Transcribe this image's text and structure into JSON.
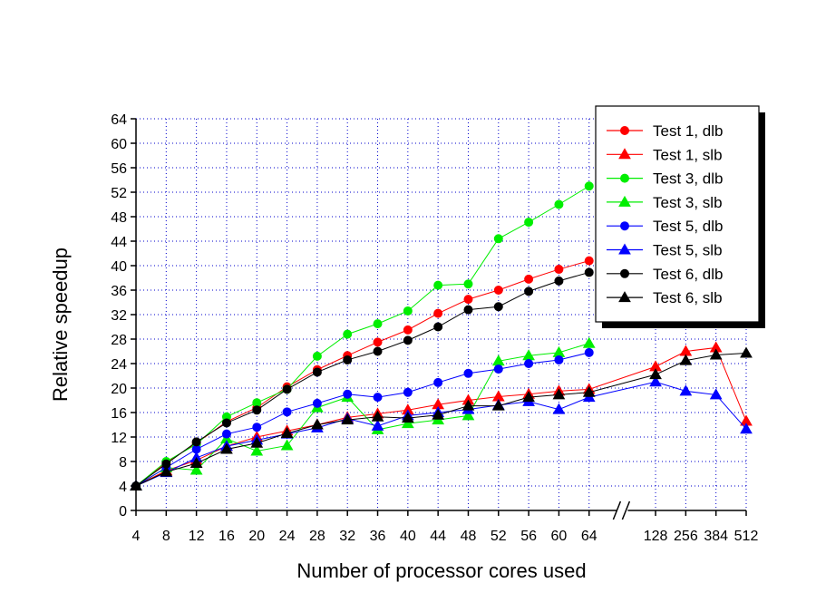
{
  "chart_data": {
    "type": "line",
    "xlabel": "Number of processor cores used",
    "ylabel": "Relative speedup",
    "categories": [
      "4",
      "8",
      "12",
      "16",
      "20",
      "24",
      "28",
      "32",
      "36",
      "40",
      "44",
      "48",
      "52",
      "56",
      "60",
      "64",
      "128",
      "256",
      "384",
      "512"
    ],
    "axis_break_after": "64",
    "ylim": [
      0,
      64
    ],
    "yticks": [
      0,
      4,
      8,
      12,
      16,
      20,
      24,
      28,
      32,
      36,
      40,
      44,
      48,
      52,
      56,
      60,
      64
    ],
    "grid": true,
    "legend_position": "top-right",
    "series": [
      {
        "name": "Test 1, dlb",
        "color": "#ff0000",
        "marker": "circle",
        "values": [
          4,
          7.8,
          11,
          14.5,
          16.8,
          20.2,
          23,
          25.3,
          27.5,
          29.5,
          32.2,
          34.5,
          36,
          37.8,
          39.4,
          40.8,
          null,
          null,
          null,
          null
        ]
      },
      {
        "name": "Test 1, slb",
        "color": "#ff0000",
        "marker": "triangle",
        "values": [
          4,
          6.5,
          8.2,
          10.5,
          12,
          13,
          14,
          15.2,
          15.8,
          16.4,
          17.3,
          18,
          18.6,
          19,
          19.5,
          19.8,
          23.5,
          26,
          26.6,
          14.6
        ]
      },
      {
        "name": "Test 3, dlb",
        "color": "#00ee00",
        "marker": "circle",
        "values": [
          4,
          8,
          10.8,
          15.3,
          17.6,
          19.8,
          25.2,
          28.8,
          30.5,
          32.6,
          36.8,
          37,
          44.4,
          47.1,
          50,
          53,
          null,
          null,
          null,
          null
        ]
      },
      {
        "name": "Test 3, slb",
        "color": "#00ee00",
        "marker": "triangle",
        "values": [
          4,
          7,
          6.6,
          11.7,
          9.7,
          10.6,
          16.8,
          18.5,
          13.2,
          14.2,
          14.8,
          15.5,
          24.4,
          25.3,
          25.8,
          27.3,
          null,
          null,
          null,
          null
        ]
      },
      {
        "name": "Test 5, dlb",
        "color": "#0000ff",
        "marker": "circle",
        "values": [
          4,
          7,
          10,
          12.5,
          13.6,
          16.1,
          17.5,
          19,
          18.5,
          19.3,
          20.9,
          22.4,
          23.1,
          24,
          24.6,
          25.8,
          null,
          null,
          null,
          null
        ]
      },
      {
        "name": "Test 5, slb",
        "color": "#0000ff",
        "marker": "triangle",
        "values": [
          4,
          6.2,
          8.6,
          10.5,
          11.5,
          12.5,
          13.5,
          15,
          13.8,
          15.5,
          16,
          16.5,
          17.2,
          17.8,
          16.5,
          18.5,
          21,
          19.5,
          18.9,
          13.3
        ]
      },
      {
        "name": "Test 6, dlb",
        "color": "#000000",
        "marker": "circle",
        "values": [
          4,
          7.6,
          11.2,
          14.3,
          16.4,
          19.8,
          22.6,
          24.6,
          26,
          27.8,
          30,
          32.8,
          33.3,
          35.8,
          37.5,
          38.9,
          null,
          null,
          null,
          null
        ]
      },
      {
        "name": "Test 6, slb",
        "color": "#000000",
        "marker": "triangle",
        "values": [
          4,
          6.3,
          7.7,
          10,
          11,
          12.6,
          14,
          14.8,
          15.3,
          15.1,
          15.6,
          17.1,
          17.1,
          18.5,
          18.9,
          19.3,
          22.2,
          24.5,
          25.4,
          25.7
        ]
      }
    ]
  }
}
